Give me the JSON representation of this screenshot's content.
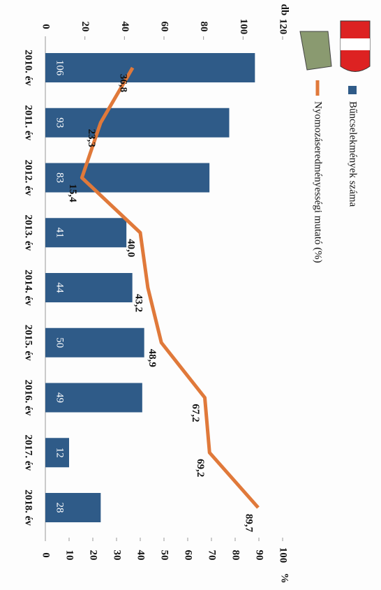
{
  "chart_data": {
    "type": "bar",
    "categories": [
      "2010. év",
      "2011. év",
      "2012. év",
      "2013. év",
      "2014. év",
      "2015. év",
      "2016. év",
      "2017. év",
      "2018. év"
    ],
    "series": [
      {
        "name": "Bűncselekmények száma",
        "type": "bar",
        "color": "#2f5b88",
        "values": [
          106,
          93,
          83,
          41,
          44,
          50,
          49,
          12,
          28
        ]
      },
      {
        "name": "Nyomozáseredményességi mutató (%)",
        "type": "line",
        "axis": "y2",
        "color": "#e0793a",
        "values": [
          36.8,
          23.3,
          15.4,
          40.0,
          43.2,
          48.9,
          67.2,
          69.2,
          89.7
        ],
        "value_labels": [
          "36,8",
          "23,3",
          "15,4",
          "40,0",
          "43,2",
          "48,9",
          "67,2",
          "69,2",
          "89,7"
        ]
      }
    ],
    "ylabel": "db",
    "y2label": "%",
    "ylim": [
      0,
      120
    ],
    "yticks": [
      0,
      20,
      40,
      60,
      80,
      100,
      120
    ],
    "y2lim": [
      0,
      100
    ],
    "y2ticks": [
      0,
      10,
      20,
      30,
      40,
      50,
      60,
      70,
      80,
      90,
      100
    ]
  }
}
